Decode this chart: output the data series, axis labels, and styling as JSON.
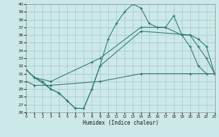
{
  "title": "",
  "xlabel": "Humidex (Indice chaleur)",
  "background_color": "#cde8e8",
  "line_color": "#2d7a6e",
  "grid_color": "#a0c8c8",
  "ylim": [
    26,
    40
  ],
  "xlim": [
    0,
    23
  ],
  "yticks": [
    26,
    27,
    28,
    29,
    30,
    31,
    32,
    33,
    34,
    35,
    36,
    37,
    38,
    39,
    40
  ],
  "xticks": [
    0,
    1,
    2,
    3,
    4,
    5,
    6,
    7,
    8,
    9,
    10,
    11,
    12,
    13,
    14,
    15,
    16,
    17,
    18,
    19,
    20,
    21,
    22,
    23
  ],
  "line1_x": [
    0,
    1,
    2,
    3,
    4,
    5,
    6,
    7,
    8,
    9,
    10,
    11,
    12,
    13,
    14,
    15,
    16,
    17,
    18,
    19,
    20,
    21,
    22,
    23
  ],
  "line1_y": [
    31.5,
    30.5,
    30.0,
    29.0,
    28.5,
    27.5,
    26.5,
    26.5,
    29.0,
    32.0,
    35.5,
    37.5,
    39.0,
    40.0,
    39.5,
    37.5,
    37.0,
    37.0,
    38.5,
    36.0,
    34.5,
    32.0,
    31.0,
    31.0
  ],
  "line2_x": [
    0,
    1,
    3,
    8,
    9,
    14,
    17,
    19,
    20,
    21,
    22,
    23
  ],
  "line2_y": [
    31.5,
    30.5,
    30.0,
    32.5,
    33.0,
    37.0,
    37.0,
    36.0,
    36.0,
    35.5,
    34.5,
    31.0
  ],
  "line3_x": [
    0,
    1,
    3,
    4,
    5,
    6,
    7,
    8,
    9,
    14,
    20,
    21,
    22,
    23
  ],
  "line3_y": [
    31.5,
    30.5,
    29.0,
    28.5,
    27.5,
    26.5,
    26.5,
    29.0,
    32.0,
    36.5,
    36.0,
    34.5,
    33.0,
    31.0
  ],
  "line4_x": [
    0,
    1,
    3,
    9,
    14,
    20,
    23
  ],
  "line4_y": [
    30.0,
    29.5,
    29.5,
    30.0,
    31.0,
    31.0,
    31.0
  ]
}
